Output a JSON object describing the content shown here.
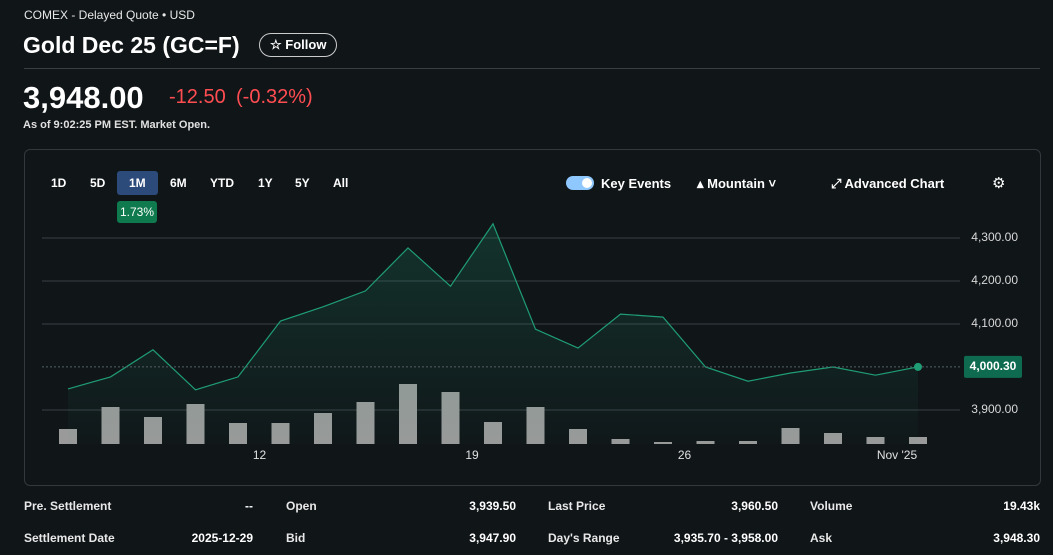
{
  "header": {
    "source": "COMEX - Delayed Quote • USD",
    "title": "Gold Dec 25 (GC=F)",
    "follow": "Follow",
    "price": "3,948.00",
    "change": "-12.50",
    "change_pct": "(-0.32%)",
    "as_of": "As of 9:02:25 PM EST. Market Open."
  },
  "toolbar": {
    "ranges": [
      "1D",
      "5D",
      "1M",
      "6M",
      "YTD",
      "1Y",
      "5Y",
      "All"
    ],
    "selected": "1M",
    "range_change": "1.73%",
    "key_events": "Key Events",
    "chart_style": "Mountain",
    "advanced": "Advanced Chart"
  },
  "chart_data": {
    "type": "area",
    "color": "#1f9d74",
    "categories": [
      null,
      null,
      null,
      null,
      null,
      "12",
      null,
      null,
      null,
      null,
      "19",
      null,
      null,
      null,
      null,
      "26",
      null,
      null,
      null,
      null,
      "Nov '25"
    ],
    "values": [
      3949,
      3977,
      4040,
      3947,
      3977,
      4107,
      4140,
      4177,
      4277,
      4188,
      4333,
      4088,
      4044,
      4123,
      4116,
      4000,
      3967,
      3986,
      4000,
      3981,
      4000.3
    ],
    "value_labels": [
      null,
      null,
      null,
      null,
      null,
      null,
      null,
      null,
      null,
      null,
      null,
      null,
      null,
      null,
      null,
      null,
      null,
      null,
      null,
      null,
      "4,000.30"
    ],
    "volume": [
      15,
      37,
      27,
      40,
      21,
      21,
      31,
      42,
      60,
      52,
      22,
      37,
      15,
      5,
      2,
      3,
      3,
      16,
      11,
      7,
      7
    ],
    "volume_color": "#9a9a9a",
    "ylim": [
      3830,
      4340
    ],
    "yticks": [
      {
        "value": 3900,
        "label": "3,900.00"
      },
      {
        "value": 4100,
        "label": "4,100.00"
      },
      {
        "value": 4200,
        "label": "4,200.00"
      },
      {
        "value": 4300,
        "label": "4,300.00"
      }
    ],
    "grid": true
  },
  "stats": {
    "rows": [
      [
        [
          "Pre. Settlement",
          "--"
        ],
        [
          "Open",
          "3,939.50"
        ],
        [
          "Last Price",
          "3,960.50"
        ],
        [
          "Volume",
          "19.43k"
        ]
      ],
      [
        [
          "Settlement Date",
          "2025-12-29"
        ],
        [
          "Bid",
          "3,947.90"
        ],
        [
          "Day's Range",
          "3,935.70 - 3,958.00"
        ],
        [
          "Ask",
          "3,948.30"
        ]
      ]
    ]
  }
}
